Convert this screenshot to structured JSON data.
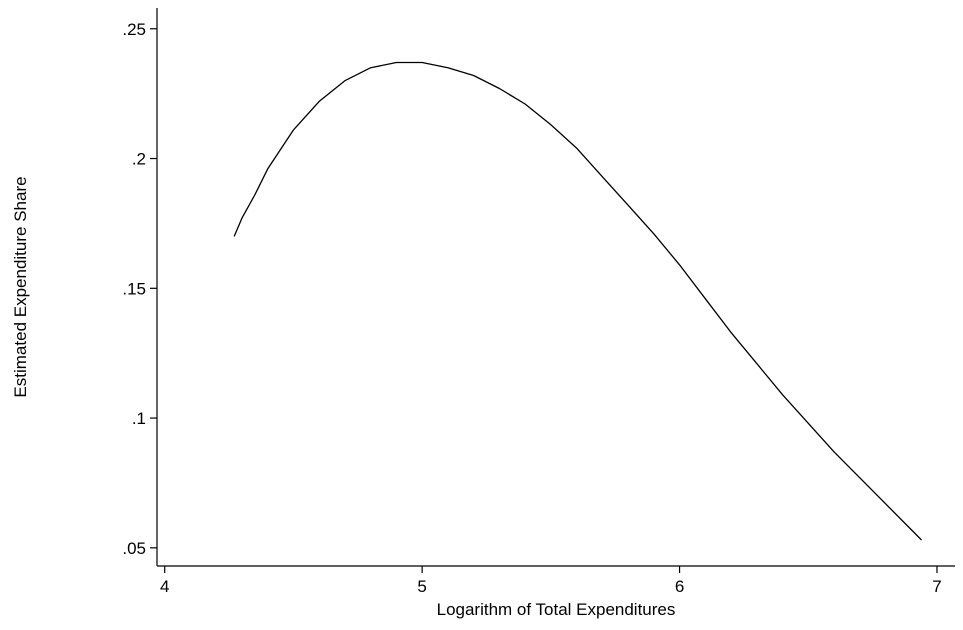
{
  "chart_data": {
    "type": "line",
    "title": "",
    "xlabel": "Logarithm of Total Expenditures",
    "ylabel": "Estimated Expenditure Share",
    "xlim": [
      3.97,
      7.07
    ],
    "ylim": [
      0.043,
      0.258
    ],
    "x_ticks": [
      {
        "value": 4,
        "label": "4"
      },
      {
        "value": 5,
        "label": "5"
      },
      {
        "value": 6,
        "label": "6"
      },
      {
        "value": 7,
        "label": "7"
      }
    ],
    "y_ticks": [
      {
        "value": 0.05,
        "label": ".05"
      },
      {
        "value": 0.1,
        "label": ".1"
      },
      {
        "value": 0.15,
        "label": ".15"
      },
      {
        "value": 0.2,
        "label": ".2"
      },
      {
        "value": 0.25,
        "label": ".25"
      }
    ],
    "grid": false,
    "series": [
      {
        "x": [
          4.27,
          4.3,
          4.35,
          4.4,
          4.5,
          4.6,
          4.7,
          4.8,
          4.9,
          5.0,
          5.1,
          5.2,
          5.3,
          5.4,
          5.5,
          5.6,
          5.7,
          5.8,
          5.9,
          6.0,
          6.1,
          6.2,
          6.3,
          6.4,
          6.5,
          6.6,
          6.7,
          6.8,
          6.94
        ],
        "y": [
          0.17,
          0.177,
          0.186,
          0.196,
          0.211,
          0.222,
          0.23,
          0.235,
          0.237,
          0.237,
          0.235,
          0.232,
          0.227,
          0.221,
          0.213,
          0.204,
          0.193,
          0.182,
          0.171,
          0.159,
          0.146,
          0.133,
          0.121,
          0.109,
          0.098,
          0.087,
          0.077,
          0.067,
          0.053
        ]
      }
    ],
    "colors": {
      "line": "#000000",
      "axis": "#000000",
      "background": "#ffffff"
    }
  }
}
